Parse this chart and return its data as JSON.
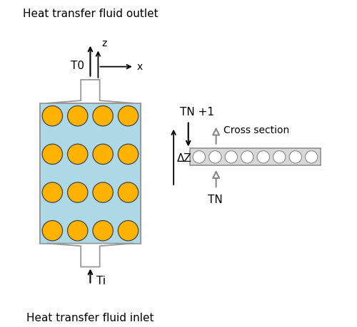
{
  "bg_color": "#ffffff",
  "title_top": "Heat transfer fluid outlet",
  "title_bottom": "Heat transfer fluid inlet",
  "label_T0": "T0",
  "label_z": "z",
  "label_x": "x",
  "label_Ti": "Ti",
  "label_TN1": "TN +1",
  "label_TN": "TN",
  "label_dZ": "ΔZ",
  "label_cross": "Cross section",
  "tank_color": "#add8e6",
  "tank_border": "#999999",
  "circle_color": "#FFB300",
  "circle_edge": "#444444",
  "cross_section_bg": "#d8d8d8",
  "cross_section_border": "#888888",
  "arrow_color": "#000000"
}
